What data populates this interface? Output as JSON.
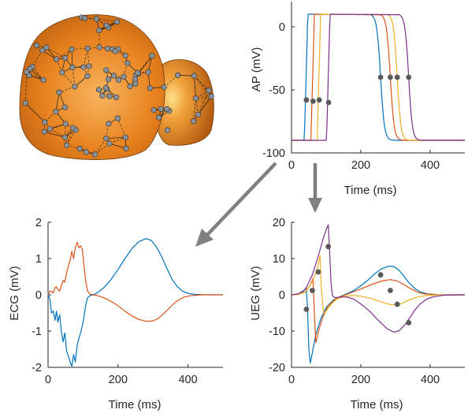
{
  "colors": {
    "blue": "#0072BD",
    "orange": "#D95319",
    "yellow": "#EDB120",
    "purple": "#7E2F8E",
    "marker": "#595959",
    "arrow": "#808080",
    "heart": "#E5801E"
  },
  "chart_data": [
    {
      "type": "line",
      "id": "ap",
      "ylabel": "AP (mV)",
      "xlabel": "Time (ms)",
      "xlim": [
        0,
        500
      ],
      "ylim": [
        -100,
        20
      ],
      "xticks": [
        0,
        200,
        400
      ],
      "yticks": [
        0,
        -50,
        -100
      ],
      "series": [
        {
          "color": "blue",
          "upstroke": 43,
          "plateau_end": 230,
          "t50": 257
        },
        {
          "color": "orange",
          "upstroke": 62,
          "plateau_end": 258,
          "t50": 285
        },
        {
          "color": "yellow",
          "upstroke": 80,
          "plateau_end": 279,
          "t50": 305
        },
        {
          "color": "purple",
          "upstroke": 107,
          "plateau_end": 312,
          "t50": 338
        }
      ],
      "markers": [
        [
          43,
          -58
        ],
        [
          62,
          -59
        ],
        [
          80,
          -58
        ],
        [
          107,
          -60
        ],
        [
          257,
          -40
        ],
        [
          285,
          -40
        ],
        [
          305,
          -40
        ],
        [
          338,
          -40
        ]
      ]
    },
    {
      "type": "line",
      "id": "ecg",
      "ylabel": "ECG (mV)",
      "xlabel": "Time (ms)",
      "xlim": [
        0,
        500
      ],
      "ylim": [
        -2,
        2
      ],
      "xticks": [
        0,
        200,
        400
      ],
      "yticks": [
        2,
        1,
        0,
        -1,
        -2
      ],
      "series": [
        {
          "color": "blue",
          "points": [
            [
              0,
              0
            ],
            [
              5,
              -0.1
            ],
            [
              10,
              -0.5
            ],
            [
              15,
              -0.45
            ],
            [
              20,
              -0.7
            ],
            [
              24,
              -0.45
            ],
            [
              28,
              -0.75
            ],
            [
              33,
              -0.55
            ],
            [
              38,
              -1.0
            ],
            [
              43,
              -1.3
            ],
            [
              48,
              -1.05
            ],
            [
              53,
              -1.55
            ],
            [
              58,
              -1.7
            ],
            [
              63,
              -1.85
            ],
            [
              68,
              -1.97
            ],
            [
              73,
              -1.65
            ],
            [
              78,
              -1.85
            ],
            [
              83,
              -1.4
            ],
            [
              88,
              -1.2
            ],
            [
              93,
              -1.05
            ],
            [
              98,
              -0.85
            ],
            [
              103,
              -0.6
            ],
            [
              108,
              -0.25
            ],
            [
              113,
              -0.08
            ],
            [
              120,
              -0.02
            ],
            [
              130,
              0.0
            ],
            [
              140,
              0.05
            ],
            [
              160,
              0.2
            ],
            [
              180,
              0.42
            ],
            [
              200,
              0.7
            ],
            [
              220,
              1.0
            ],
            [
              240,
              1.28
            ],
            [
              260,
              1.47
            ],
            [
              280,
              1.55
            ],
            [
              295,
              1.5
            ],
            [
              310,
              1.32
            ],
            [
              325,
              1.05
            ],
            [
              340,
              0.72
            ],
            [
              355,
              0.42
            ],
            [
              370,
              0.22
            ],
            [
              385,
              0.1
            ],
            [
              400,
              0.04
            ],
            [
              420,
              0.01
            ],
            [
              450,
              0.0
            ],
            [
              500,
              0.0
            ]
          ]
        },
        {
          "color": "orange",
          "points": [
            [
              0,
              0
            ],
            [
              5,
              0.1
            ],
            [
              10,
              0.1
            ],
            [
              15,
              0.05
            ],
            [
              20,
              0.2
            ],
            [
              24,
              0.22
            ],
            [
              28,
              0.15
            ],
            [
              33,
              0.1
            ],
            [
              38,
              0.25
            ],
            [
              43,
              0.4
            ],
            [
              48,
              0.35
            ],
            [
              53,
              0.6
            ],
            [
              58,
              0.8
            ],
            [
              63,
              0.95
            ],
            [
              68,
              1.2
            ],
            [
              73,
              1.0
            ],
            [
              78,
              1.3
            ],
            [
              83,
              1.45
            ],
            [
              88,
              1.3
            ],
            [
              93,
              1.35
            ],
            [
              98,
              1.25
            ],
            [
              103,
              0.8
            ],
            [
              108,
              0.35
            ],
            [
              113,
              0.1
            ],
            [
              120,
              0.02
            ],
            [
              130,
              0.0
            ],
            [
              140,
              -0.02
            ],
            [
              160,
              -0.08
            ],
            [
              180,
              -0.18
            ],
            [
              200,
              -0.3
            ],
            [
              220,
              -0.45
            ],
            [
              240,
              -0.58
            ],
            [
              260,
              -0.68
            ],
            [
              280,
              -0.73
            ],
            [
              300,
              -0.72
            ],
            [
              315,
              -0.65
            ],
            [
              330,
              -0.52
            ],
            [
              345,
              -0.38
            ],
            [
              360,
              -0.24
            ],
            [
              375,
              -0.13
            ],
            [
              390,
              -0.06
            ],
            [
              410,
              -0.02
            ],
            [
              440,
              0.0
            ],
            [
              500,
              0.0
            ]
          ]
        }
      ]
    },
    {
      "type": "line",
      "id": "ueg",
      "ylabel": "UEG (mV)",
      "xlabel": "Time (ms)",
      "xlim": [
        0,
        500
      ],
      "ylim": [
        -20,
        20
      ],
      "xticks": [
        0,
        200,
        400
      ],
      "yticks": [
        20,
        10,
        0,
        -10,
        -20
      ],
      "series": [
        {
          "color": "blue",
          "points": [
            [
              0,
              0
            ],
            [
              20,
              0.2
            ],
            [
              35,
              1.0
            ],
            [
              42,
              2.0
            ],
            [
              46,
              -3
            ],
            [
              50,
              -15
            ],
            [
              54,
              -18.8
            ],
            [
              60,
              -16
            ],
            [
              70,
              -11
            ],
            [
              85,
              -6.5
            ],
            [
              100,
              -3.5
            ],
            [
              120,
              -1.5
            ],
            [
              140,
              -0.5
            ],
            [
              160,
              0.3
            ],
            [
              180,
              1.2
            ],
            [
              200,
              2.5
            ],
            [
              220,
              4.0
            ],
            [
              240,
              5.8
            ],
            [
              260,
              7.2
            ],
            [
              280,
              7.9
            ],
            [
              295,
              7.8
            ],
            [
              310,
              6.8
            ],
            [
              325,
              5.0
            ],
            [
              340,
              3.2
            ],
            [
              355,
              1.8
            ],
            [
              370,
              0.9
            ],
            [
              390,
              0.3
            ],
            [
              420,
              0.05
            ],
            [
              500,
              0
            ]
          ]
        },
        {
          "color": "orange",
          "points": [
            [
              0,
              0
            ],
            [
              20,
              0.1
            ],
            [
              40,
              0.8
            ],
            [
              55,
              2.8
            ],
            [
              62,
              4.5
            ],
            [
              66,
              -5
            ],
            [
              70,
              -13.2
            ],
            [
              78,
              -10
            ],
            [
              90,
              -6.2
            ],
            [
              105,
              -3.2
            ],
            [
              125,
              -1.3
            ],
            [
              145,
              -0.4
            ],
            [
              170,
              0.5
            ],
            [
              200,
              1.6
            ],
            [
              230,
              2.8
            ],
            [
              260,
              3.8
            ],
            [
              285,
              4.2
            ],
            [
              305,
              3.8
            ],
            [
              325,
              2.8
            ],
            [
              345,
              1.6
            ],
            [
              365,
              0.7
            ],
            [
              385,
              0.25
            ],
            [
              420,
              0.05
            ],
            [
              500,
              0
            ]
          ]
        },
        {
          "color": "yellow",
          "points": [
            [
              0,
              0
            ],
            [
              20,
              0.1
            ],
            [
              40,
              0.9
            ],
            [
              60,
              3.5
            ],
            [
              75,
              7.5
            ],
            [
              82,
              10.8
            ],
            [
              86,
              2
            ],
            [
              92,
              -5
            ],
            [
              100,
              -4.5
            ],
            [
              115,
              -2.5
            ],
            [
              130,
              -1.2
            ],
            [
              150,
              -0.5
            ],
            [
              175,
              -0.2
            ],
            [
              200,
              -0.4
            ],
            [
              230,
              -1.0
            ],
            [
              260,
              -2.0
            ],
            [
              285,
              -2.7
            ],
            [
              305,
              -2.8
            ],
            [
              320,
              -2.3
            ],
            [
              340,
              -1.4
            ],
            [
              360,
              -0.7
            ],
            [
              385,
              -0.25
            ],
            [
              420,
              -0.05
            ],
            [
              500,
              0
            ]
          ]
        },
        {
          "color": "purple",
          "points": [
            [
              0,
              0
            ],
            [
              20,
              0.3
            ],
            [
              40,
              1.5
            ],
            [
              60,
              5.5
            ],
            [
              75,
              10
            ],
            [
              90,
              15
            ],
            [
              100,
              18
            ],
            [
              106,
              19.3
            ],
            [
              110,
              12
            ],
            [
              114,
              3
            ],
            [
              118,
              -0.2
            ],
            [
              125,
              -0.8
            ],
            [
              140,
              -0.6
            ],
            [
              160,
              -0.6
            ],
            [
              180,
              -1.2
            ],
            [
              200,
              -2.5
            ],
            [
              225,
              -4.5
            ],
            [
              250,
              -7
            ],
            [
              275,
              -9.3
            ],
            [
              295,
              -10.3
            ],
            [
              310,
              -9.9
            ],
            [
              325,
              -8.5
            ],
            [
              340,
              -6.5
            ],
            [
              355,
              -4.3
            ],
            [
              370,
              -2.6
            ],
            [
              390,
              -1.2
            ],
            [
              410,
              -0.5
            ],
            [
              440,
              -0.1
            ],
            [
              500,
              0
            ]
          ]
        }
      ],
      "markers": [
        [
          43,
          -4
        ],
        [
          60,
          1.2
        ],
        [
          77,
          6.3
        ],
        [
          106,
          13.3
        ],
        [
          257,
          5.5
        ],
        [
          285,
          1.2
        ],
        [
          305,
          -2.6
        ],
        [
          338,
          -7.7
        ]
      ]
    }
  ]
}
